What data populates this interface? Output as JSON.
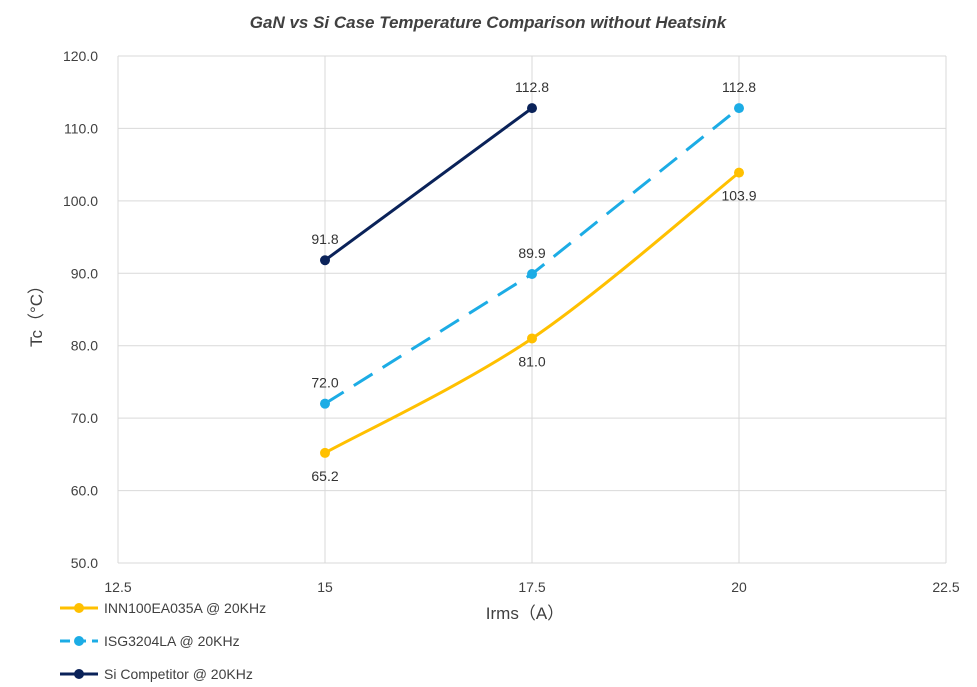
{
  "chart_data": {
    "type": "line",
    "title": "GaN vs Si Case Temperature Comparison without Heatsink",
    "xlabel": "Irms（A）",
    "ylabel": "Tc（°C）",
    "xlim": [
      12.5,
      22.5
    ],
    "ylim": [
      50,
      120
    ],
    "x_ticks": [
      "12.5",
      "15",
      "17.5",
      "20",
      "22.5"
    ],
    "y_ticks": [
      "50.0",
      "60.0",
      "70.0",
      "80.0",
      "90.0",
      "100.0",
      "110.0",
      "120.0"
    ],
    "grid": true,
    "legend_position": "bottom-left",
    "series": [
      {
        "name": "INN100EA035A @ 20KHz",
        "color": "#ffc000",
        "dash": "solid",
        "smooth": true,
        "x": [
          15,
          17.5,
          20
        ],
        "y": [
          65.2,
          81.0,
          103.9
        ],
        "labels": [
          "65.2",
          "81.0",
          "103.9"
        ],
        "label_position": "below"
      },
      {
        "name": "ISG3204LA @ 20KHz",
        "color": "#1cace5",
        "dash": "dashed",
        "smooth": false,
        "x": [
          15,
          17.5,
          20
        ],
        "y": [
          72.0,
          89.9,
          112.8
        ],
        "labels": [
          "72.0",
          "89.9",
          "112.8"
        ],
        "label_position": "above"
      },
      {
        "name": "Si Competitor @ 20KHz",
        "color": "#0a2259",
        "dash": "solid",
        "smooth": false,
        "x": [
          15,
          17.5
        ],
        "y": [
          91.8,
          112.8
        ],
        "labels": [
          "91.8",
          "112.8"
        ],
        "label_position": "above"
      }
    ]
  }
}
